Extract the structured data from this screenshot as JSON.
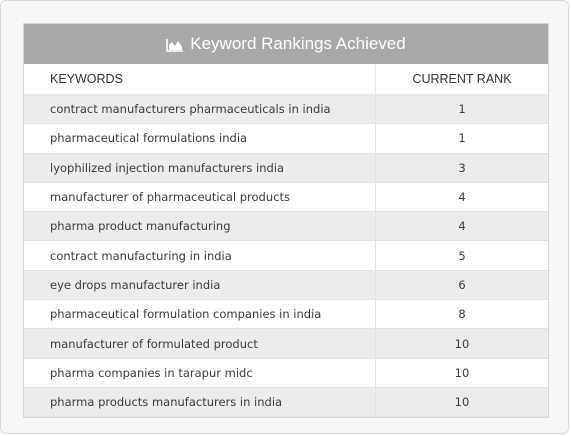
{
  "title": "Keyword Rankings Achieved",
  "icon": "area-chart-icon",
  "columns": {
    "keyword": "KEYWORDS",
    "rank": "CURRENT RANK"
  },
  "rows": [
    {
      "keyword": "contract manufacturers pharmaceuticals in india",
      "rank": "1"
    },
    {
      "keyword": "pharmaceutical formulations india",
      "rank": "1"
    },
    {
      "keyword": "lyophilized injection manufacturers india",
      "rank": "3"
    },
    {
      "keyword": "manufacturer of pharmaceutical products",
      "rank": "4"
    },
    {
      "keyword": "pharma product manufacturing",
      "rank": "4"
    },
    {
      "keyword": "contract manufacturing in india",
      "rank": "5"
    },
    {
      "keyword": "eye drops manufacturer india",
      "rank": "6"
    },
    {
      "keyword": "pharmaceutical formulation companies in india",
      "rank": "8"
    },
    {
      "keyword": "manufacturer of formulated product",
      "rank": "10"
    },
    {
      "keyword": "pharma companies in tarapur midc",
      "rank": "10"
    },
    {
      "keyword": "pharma products manufacturers in india",
      "rank": "10"
    }
  ]
}
